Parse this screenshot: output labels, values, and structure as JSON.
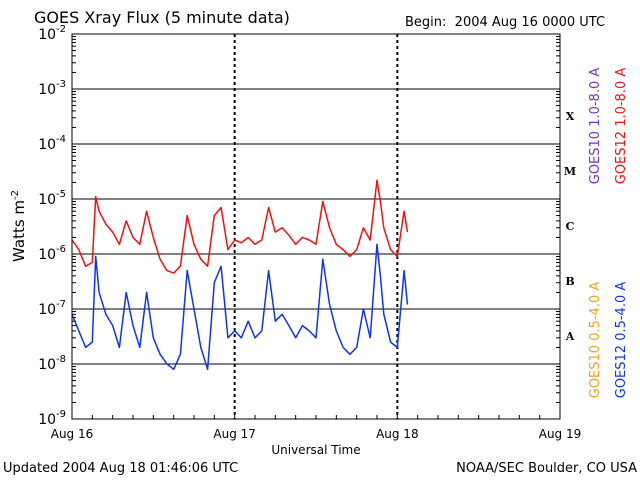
{
  "header": {
    "title": "GOES Xray Flux (5 minute data)",
    "begin_label": "Begin:",
    "begin_date": "2004 Aug 16 0000 UTC"
  },
  "footer": {
    "updated": "Updated 2004 Aug 18 01:46:06 UTC",
    "source": "NOAA/SEC Boulder, CO USA"
  },
  "colors": {
    "goes12_long": "#ee1111",
    "goes12_short": "#1133ee",
    "goes10_long": "#7733bb",
    "goes10_short": "#f0a020"
  },
  "chart_data": {
    "type": "line",
    "title": "GOES Xray Flux (5 minute data)",
    "xlabel": "Universal Time",
    "ylabel": "Watts m",
    "ylabel_exponent": "-2",
    "yscale": "log",
    "ylim": [
      1e-09,
      0.01
    ],
    "y_ticks": [
      {
        "base": "10",
        "exp": "-9",
        "value": 1e-09
      },
      {
        "base": "10",
        "exp": "-8",
        "value": 1e-08
      },
      {
        "base": "10",
        "exp": "-7",
        "value": 1e-07
      },
      {
        "base": "10",
        "exp": "-6",
        "value": 1e-06
      },
      {
        "base": "10",
        "exp": "-5",
        "value": 1e-05
      },
      {
        "base": "10",
        "exp": "-4",
        "value": 0.0001
      },
      {
        "base": "10",
        "exp": "-3",
        "value": 0.001
      },
      {
        "base": "10",
        "exp": "-2",
        "value": 0.01
      }
    ],
    "xlim_hours": [
      0,
      72
    ],
    "x_ticks": [
      {
        "label": "Aug 16",
        "hour": 0
      },
      {
        "label": "Aug 17",
        "hour": 24
      },
      {
        "label": "Aug 18",
        "hour": 48
      },
      {
        "label": "Aug 19",
        "hour": 72
      }
    ],
    "flare_classes": [
      {
        "label": "X",
        "value": 0.00032
      },
      {
        "label": "M",
        "value": 3.2e-05
      },
      {
        "label": "C",
        "value": 3.2e-06
      },
      {
        "label": "B",
        "value": 3.2e-07
      },
      {
        "label": "A",
        "value": 3.2e-08
      }
    ],
    "legend": [
      {
        "name": "GOES10 1.0-8.0 A",
        "color": "#7733bb"
      },
      {
        "name": "GOES12 1.0-8.0 A",
        "color": "#ee1111"
      },
      {
        "name": "GOES10 0.5-4.0 A",
        "color": "#f0a020"
      },
      {
        "name": "GOES12 0.5-4.0 A",
        "color": "#1133ee"
      }
    ],
    "series": [
      {
        "name": "GOES12 1.0-8.0 A",
        "color": "#ee1111",
        "x_hours": [
          0,
          1,
          2,
          3,
          3.5,
          4,
          5,
          6,
          7,
          8,
          9,
          10,
          11,
          12,
          13,
          14,
          15,
          16,
          17,
          18,
          19,
          20,
          21,
          22,
          23,
          24,
          25,
          26,
          27,
          28,
          29,
          30,
          31,
          32,
          33,
          34,
          35,
          36,
          37,
          38,
          39,
          40,
          41,
          42,
          43,
          44,
          45,
          45.5,
          46,
          47,
          48,
          49,
          49.5
        ],
        "values": [
          1.8e-06,
          1.2e-06,
          6e-07,
          7e-07,
          1.1e-05,
          6e-06,
          3.5e-06,
          2.5e-06,
          1.5e-06,
          4e-06,
          2e-06,
          1.5e-06,
          6e-06,
          2e-06,
          8e-07,
          5e-07,
          4.5e-07,
          6e-07,
          5e-06,
          1.5e-06,
          8e-07,
          6e-07,
          5e-06,
          7e-06,
          1.2e-06,
          1.8e-06,
          1.6e-06,
          2e-06,
          1.5e-06,
          1.8e-06,
          7e-06,
          2.5e-06,
          3e-06,
          2.2e-06,
          1.5e-06,
          2e-06,
          1.8e-06,
          1.5e-06,
          9e-06,
          3e-06,
          1.5e-06,
          1.2e-06,
          9e-07,
          1.2e-06,
          3e-06,
          1.8e-06,
          2.2e-05,
          9e-06,
          3e-06,
          1.2e-06,
          9e-07,
          6e-06,
          2.5e-06
        ]
      },
      {
        "name": "GOES12 0.5-4.0 A",
        "color": "#1133ee",
        "x_hours": [
          0,
          1,
          2,
          3,
          3.5,
          4,
          5,
          6,
          7,
          8,
          9,
          10,
          11,
          12,
          13,
          14,
          15,
          16,
          17,
          18,
          19,
          20,
          21,
          22,
          23,
          24,
          25,
          26,
          27,
          28,
          29,
          30,
          31,
          32,
          33,
          34,
          35,
          36,
          37,
          38,
          39,
          40,
          41,
          42,
          43,
          44,
          45,
          45.5,
          46,
          47,
          48,
          49,
          49.5
        ],
        "values": [
          8e-08,
          4e-08,
          2e-08,
          2.5e-08,
          9e-07,
          2e-07,
          8e-08,
          5e-08,
          2e-08,
          2e-07,
          5e-08,
          2e-08,
          2e-07,
          3e-08,
          1.5e-08,
          1e-08,
          8e-09,
          1.5e-08,
          5e-07,
          1e-07,
          2e-08,
          8e-09,
          3e-07,
          6e-07,
          3e-08,
          4e-08,
          3e-08,
          6e-08,
          3e-08,
          4e-08,
          5e-07,
          6e-08,
          8e-08,
          5e-08,
          3e-08,
          5e-08,
          4e-08,
          3e-08,
          8e-07,
          1.2e-07,
          4e-08,
          2e-08,
          1.5e-08,
          2e-08,
          1e-07,
          3e-08,
          1.5e-06,
          4e-07,
          8e-08,
          2.5e-08,
          2e-08,
          5e-07,
          1.2e-07
        ]
      }
    ]
  }
}
